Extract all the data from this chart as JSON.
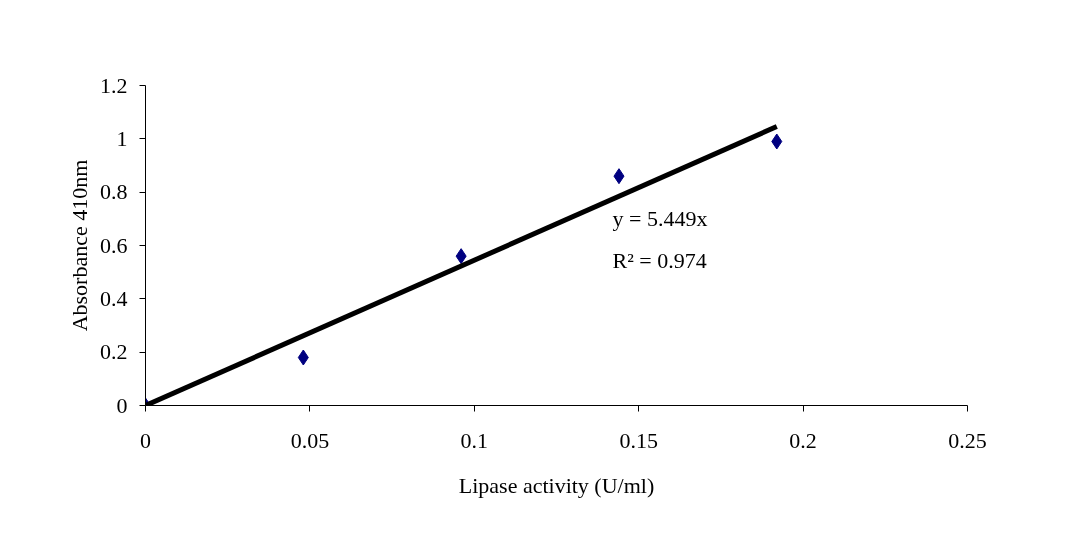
{
  "chart_data": {
    "type": "scatter",
    "xlabel": "Lipase activity (U/ml)",
    "ylabel": "Absorbance 410nm",
    "x": [
      0,
      0.048,
      0.096,
      0.144,
      0.192
    ],
    "series": [
      {
        "color": "#000080",
        "values": [
          0,
          0.18,
          0.56,
          0.86,
          0.99
        ],
        "marker": "diamond"
      },
      {
        "type": "line",
        "color": "#000000",
        "x": [
          0,
          0.192
        ],
        "values": [
          0,
          1.046
        ],
        "marker": "none"
      }
    ],
    "annotations": [
      "y = 5.449x",
      "R² = 0.974"
    ],
    "xlim": [
      0,
      0.25
    ],
    "xticks": [
      0,
      0.05,
      0.1,
      0.15,
      0.2,
      0.25
    ],
    "ylim": [
      0,
      1.2
    ],
    "yticks": [
      0,
      0.2,
      0.4,
      0.6,
      0.8,
      1,
      1.2
    ],
    "grid": false
  }
}
